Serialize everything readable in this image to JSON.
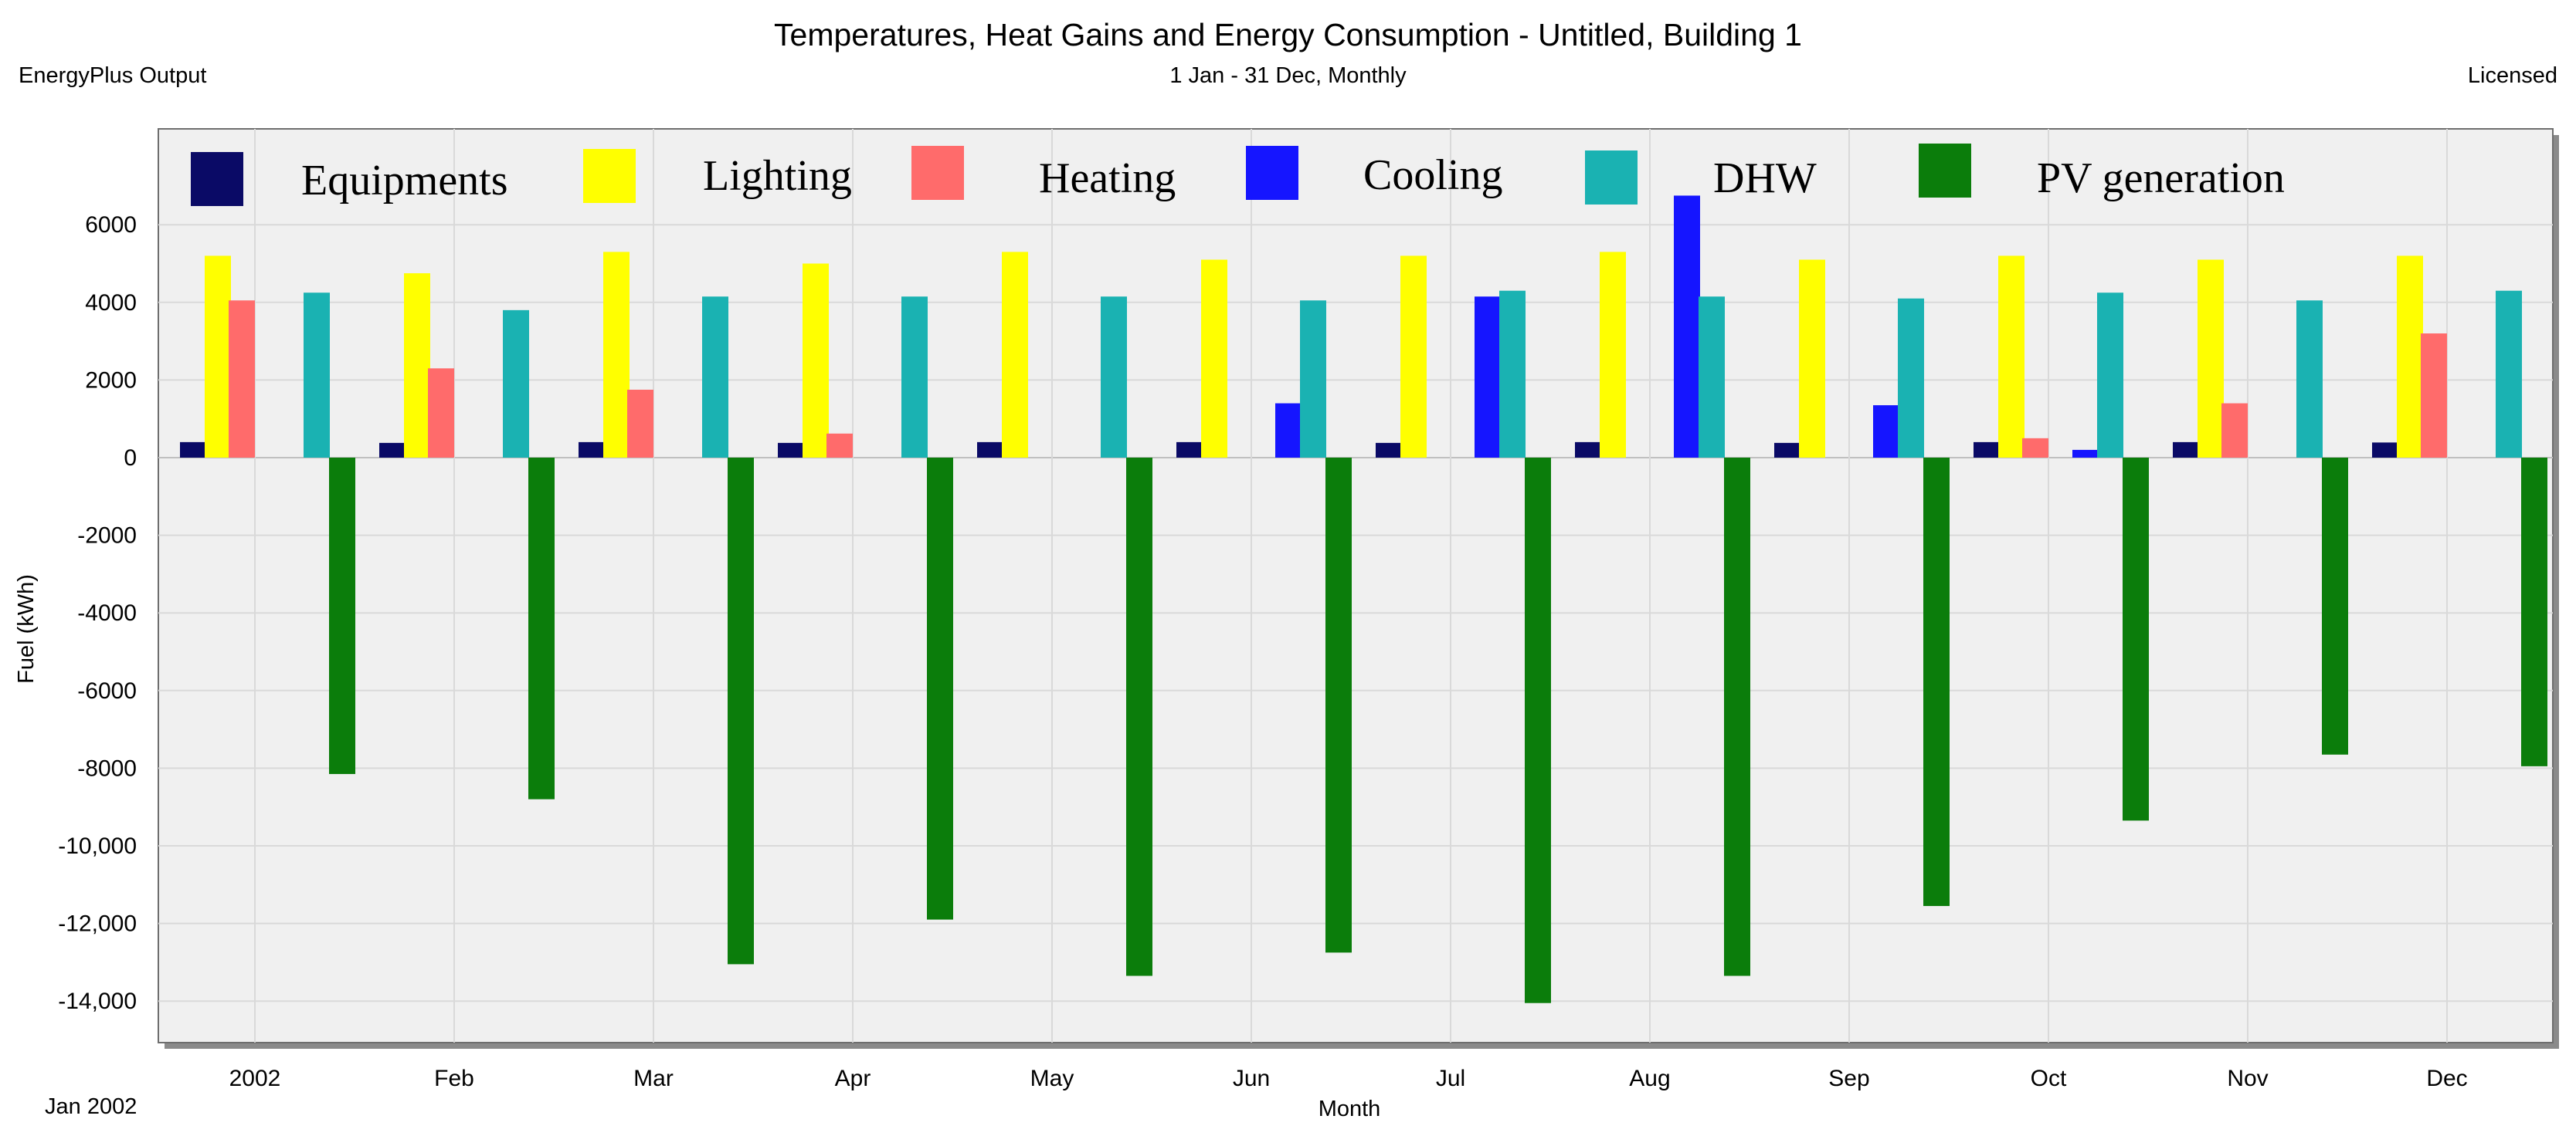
{
  "header": {
    "title": "Temperatures, Heat Gains and Energy Consumption - Untitled, Building 1",
    "subtitle": "1 Jan - 31 Dec, Monthly",
    "program": "EnergyPlus Output",
    "license": "Licensed",
    "period_label": "Jan  2002"
  },
  "chart_data": {
    "type": "bar",
    "title": "Temperatures, Heat Gains and Energy Consumption - Untitled, Building 1",
    "xlabel": "Month",
    "ylabel": "Fuel (kWh)",
    "ylim": [
      -14800,
      8000
    ],
    "yticks": [
      6000,
      4000,
      2000,
      0,
      -2000,
      -4000,
      -6000,
      -8000,
      -10000,
      -12000,
      -14000
    ],
    "ytick_labels": [
      "6000",
      "4000",
      "2000",
      "0",
      "-2000",
      "-4000",
      "-6000",
      "-8000",
      "-10,000",
      "-12,000",
      "-14,000"
    ],
    "grid": true,
    "legend_position": "top",
    "categories": [
      "2002",
      "Feb",
      "Mar",
      "Apr",
      "May",
      "Jun",
      "Jul",
      "Aug",
      "Sep",
      "Oct",
      "Nov",
      "Dec"
    ],
    "series": [
      {
        "name": "Equipments",
        "color": "#0a0a66",
        "values": [
          400,
          380,
          400,
          380,
          400,
          400,
          380,
          400,
          380,
          400,
          400,
          390
        ]
      },
      {
        "name": "Lighting",
        "color": "#ffff00",
        "values": [
          5200,
          4750,
          5300,
          5000,
          5300,
          5100,
          5200,
          5300,
          5100,
          5200,
          5100,
          5200
        ]
      },
      {
        "name": "Heating",
        "color": "#ff6b6b",
        "values": [
          4050,
          2300,
          1750,
          620,
          0,
          0,
          0,
          0,
          0,
          500,
          1400,
          3200
        ]
      },
      {
        "name": "Cooling",
        "color": "#1515ff",
        "values": [
          0,
          0,
          0,
          0,
          0,
          1400,
          4150,
          6750,
          1350,
          200,
          0,
          0
        ]
      },
      {
        "name": "DHW",
        "color": "#1ab2b2",
        "values": [
          4250,
          3800,
          4150,
          4150,
          4150,
          4050,
          4300,
          4150,
          4100,
          4250,
          4050,
          4300
        ]
      },
      {
        "name": "PV generation",
        "color": "#0b7d0b",
        "values": [
          -8150,
          -8800,
          -13050,
          -11900,
          -13350,
          -12750,
          -14050,
          -13350,
          -11550,
          -9350,
          -7650,
          -7950
        ]
      }
    ]
  }
}
